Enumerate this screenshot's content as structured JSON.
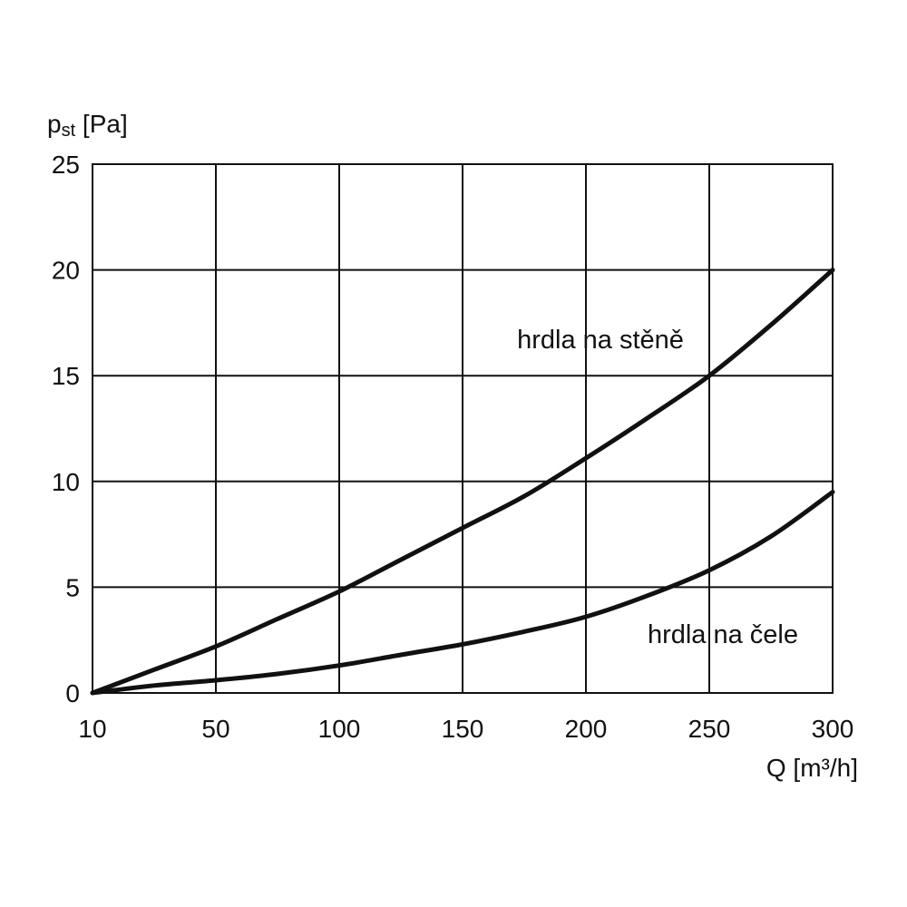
{
  "chart_data": {
    "type": "line",
    "title": "",
    "xlabel": "Q [m³/h]",
    "ylabel_main": "p",
    "ylabel_sub": "st",
    "ylabel_unit": " [Pa]",
    "xlim": [
      10,
      300
    ],
    "ylim": [
      0,
      25
    ],
    "x_ticks": [
      10,
      50,
      100,
      150,
      200,
      250,
      300
    ],
    "x_tick_labels": [
      "10",
      "50",
      "100",
      "150",
      "200",
      "250",
      "300"
    ],
    "y_ticks": [
      0,
      5,
      10,
      15,
      20,
      25
    ],
    "y_tick_labels": [
      "0",
      "5",
      "10",
      "15",
      "20",
      "25"
    ],
    "grid": true,
    "series": [
      {
        "name": "hrdla na stěně",
        "x": [
          10,
          30,
          50,
          75,
          100,
          125,
          150,
          175,
          200,
          225,
          250,
          275,
          300
        ],
        "y": [
          0,
          1.1,
          2.2,
          3.5,
          4.8,
          6.3,
          7.8,
          9.3,
          11.1,
          13.0,
          15.0,
          17.4,
          20.0
        ]
      },
      {
        "name": "hrdla na čele",
        "x": [
          10,
          30,
          50,
          75,
          100,
          125,
          150,
          175,
          200,
          225,
          250,
          275,
          300
        ],
        "y": [
          0,
          0.35,
          0.6,
          0.9,
          1.3,
          1.8,
          2.3,
          2.9,
          3.6,
          4.6,
          5.8,
          7.4,
          9.5
        ]
      }
    ],
    "annotations": [
      {
        "text": "hrdla na stěně",
        "x": 235,
        "y": 16.7
      },
      {
        "text": "hrdla na čele",
        "x": 300,
        "y": 2.6
      }
    ]
  }
}
